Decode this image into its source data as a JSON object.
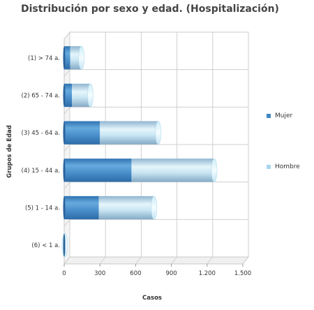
{
  "chart_data": {
    "type": "bar",
    "orientation": "horizontal",
    "stacked": true,
    "title": "Distribución por sexo y edad. (Hospitalización)",
    "xlabel": "Casos",
    "ylabel": "Grupos de Edad",
    "categories": [
      "(1) > 74 a.",
      "(2) 65 - 74 a.",
      "(3) 45 - 64 a.",
      "(4) 15 - 44 a.",
      "(5) 1 - 14 a.",
      "(6) < 1 a."
    ],
    "series": [
      {
        "name": "Mujer",
        "values": [
          50,
          65,
          300,
          565,
          290,
          3
        ],
        "color": "#3f88c4"
      },
      {
        "name": "Hombre",
        "values": [
          95,
          155,
          490,
          695,
          465,
          2
        ],
        "color": "#a9d6f0"
      }
    ],
    "xlim": [
      0,
      1500
    ],
    "xticks": [
      0,
      300,
      600,
      900,
      1200,
      1500
    ],
    "xtick_labels": [
      "0",
      "300",
      "600",
      "900",
      "1.200",
      "1.500"
    ],
    "grid": true,
    "legend_position": "right"
  }
}
